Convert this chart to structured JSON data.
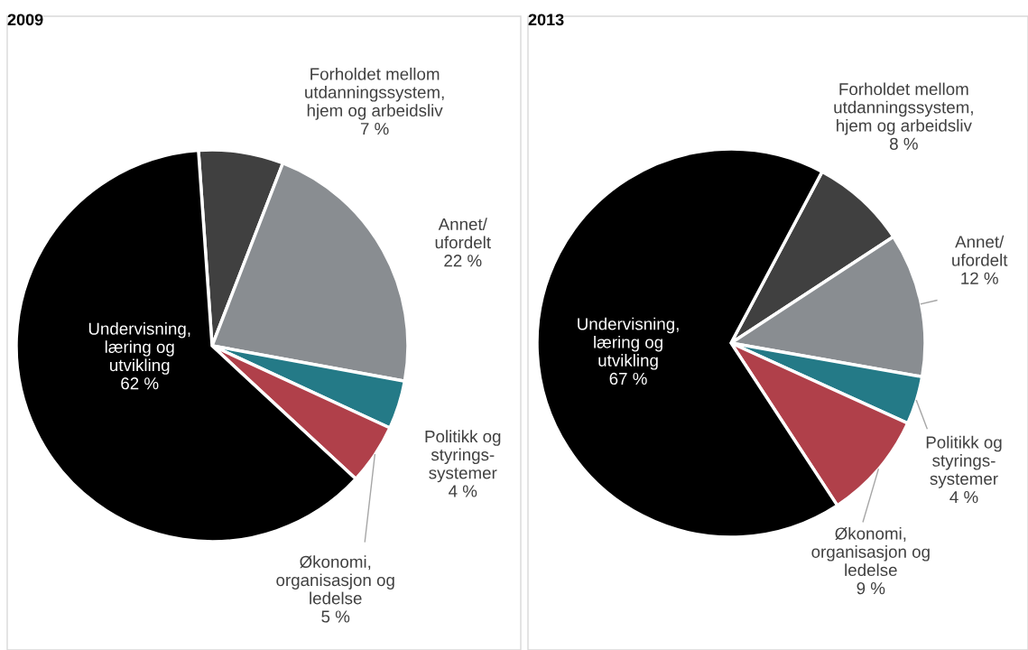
{
  "chart_data": [
    {
      "type": "pie",
      "title": "2009",
      "categories": [
        "Forholdet mellom\nutdanningssystem,\nhjem og arbeidsliv",
        "Annet/\nufordelt",
        "Politikk og\nstyrings-\nsystemer",
        "Økonomi,\norganisasjon og\nledelse",
        "Undervisning,\nlæring og\nutvikling"
      ],
      "values": [
        7,
        22,
        4,
        5,
        62
      ],
      "value_labels": [
        "7 %",
        "22 %",
        "4 %",
        "5 %",
        "62 %"
      ],
      "colors": [
        "#404040",
        "#898d91",
        "#247a87",
        "#b0404a",
        "#000000"
      ]
    },
    {
      "type": "pie",
      "title": "2013",
      "categories": [
        "Forholdet mellom\nutdanningssystem,\nhjem og arbeidsliv",
        "Annet/\nufordelt",
        "Politikk og\nstyrings-\nsystemer",
        "Økonomi,\norganisasjon og\nledelse",
        "Undervisning,\nlæring og\nutvikling"
      ],
      "values": [
        8,
        12,
        4,
        9,
        67
      ],
      "value_labels": [
        "8 %",
        "12 %",
        "4 %",
        "9 %",
        "67 %"
      ],
      "colors": [
        "#404040",
        "#898d91",
        "#247a87",
        "#b0404a",
        "#000000"
      ]
    }
  ]
}
